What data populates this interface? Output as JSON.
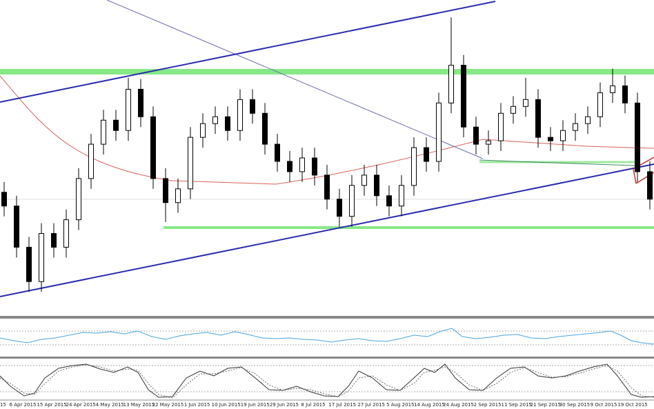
{
  "chart_data": {
    "type": "candlestick",
    "edge_label": "15",
    "x_labels": [
      "6 Apr 2015",
      "15 Apr 2015",
      "24 Apr 2015",
      "4 May 2015",
      "13 May 2015",
      "22 May 2015",
      "1 Jun 2015",
      "10 Jun 2015",
      "19 Jun 2015",
      "29 Jun 2015",
      "8 Jul 2015",
      "17 Jul 2015",
      "27 Jul 2015",
      "5 Aug 2015",
      "14 Aug 2015",
      "24 Aug 2015",
      "2 Sep 2015",
      "11 Sep 2015",
      "21 Sep 2015",
      "30 Sep 2015",
      "9 Oct 2015",
      "19 Oct 2015"
    ],
    "ohlc": [
      [
        1.095,
        1.0995,
        1.0845,
        1.089
      ],
      [
        1.089,
        1.0935,
        1.0665,
        1.071
      ],
      [
        1.071,
        1.0755,
        1.0515,
        1.056
      ],
      [
        1.056,
        1.0815,
        1.0515,
        1.077
      ],
      [
        1.077,
        1.0815,
        1.0665,
        1.071
      ],
      [
        1.071,
        1.0875,
        1.0665,
        1.083
      ],
      [
        1.083,
        1.1055,
        1.0785,
        1.101
      ],
      [
        1.101,
        1.1205,
        1.0965,
        1.116
      ],
      [
        1.116,
        1.131,
        1.1115,
        1.1265
      ],
      [
        1.1265,
        1.131,
        1.1175,
        1.122
      ],
      [
        1.122,
        1.145,
        1.1175,
        1.14
      ],
      [
        1.14,
        1.1445,
        1.1235,
        1.128
      ],
      [
        1.128,
        1.1325,
        1.0965,
        1.101
      ],
      [
        1.101,
        1.1055,
        1.082,
        1.0905
      ],
      [
        1.0905,
        1.101,
        1.086,
        1.0965
      ],
      [
        1.0965,
        1.1235,
        1.092,
        1.119
      ],
      [
        1.119,
        1.1295,
        1.1145,
        1.125
      ],
      [
        1.125,
        1.1325,
        1.1205,
        1.128
      ],
      [
        1.128,
        1.1325,
        1.1175,
        1.122
      ],
      [
        1.122,
        1.14,
        1.1175,
        1.1355
      ],
      [
        1.1355,
        1.14,
        1.125,
        1.1295
      ],
      [
        1.1295,
        1.134,
        1.1115,
        1.116
      ],
      [
        1.116,
        1.1205,
        1.104,
        1.1085
      ],
      [
        1.1085,
        1.113,
        1.0995,
        1.104
      ],
      [
        1.104,
        1.1145,
        1.0995,
        1.11
      ],
      [
        1.11,
        1.1145,
        1.098,
        1.1025
      ],
      [
        1.1025,
        1.107,
        1.0875,
        1.092
      ],
      [
        1.092,
        1.0965,
        1.08,
        1.0845
      ],
      [
        1.0845,
        1.1025,
        1.08,
        1.098
      ],
      [
        1.098,
        1.107,
        1.0935,
        1.1025
      ],
      [
        1.1025,
        1.107,
        1.089,
        1.0935
      ],
      [
        1.0935,
        1.098,
        1.0845,
        1.089
      ],
      [
        1.089,
        1.1025,
        1.0845,
        1.098
      ],
      [
        1.098,
        1.119,
        1.0935,
        1.1145
      ],
      [
        1.1145,
        1.119,
        1.104,
        1.1085
      ],
      [
        1.1085,
        1.1385,
        1.104,
        1.134
      ],
      [
        1.134,
        1.1714,
        1.1295,
        1.1505
      ],
      [
        1.1505,
        1.155,
        1.119,
        1.1235
      ],
      [
        1.1235,
        1.128,
        1.1115,
        1.116
      ],
      [
        1.116,
        1.122,
        1.1115,
        1.1175
      ],
      [
        1.1175,
        1.134,
        1.113,
        1.1295
      ],
      [
        1.1295,
        1.137,
        1.125,
        1.1325
      ],
      [
        1.1325,
        1.145,
        1.128,
        1.1355
      ],
      [
        1.1355,
        1.14,
        1.1145,
        1.119
      ],
      [
        1.119,
        1.1235,
        1.113,
        1.1175
      ],
      [
        1.1175,
        1.1265,
        1.113,
        1.122
      ],
      [
        1.122,
        1.1295,
        1.1175,
        1.125
      ],
      [
        1.125,
        1.1325,
        1.1205,
        1.128
      ],
      [
        1.128,
        1.143,
        1.1235,
        1.1385
      ],
      [
        1.1385,
        1.149,
        1.134,
        1.1415
      ],
      [
        1.1415,
        1.146,
        1.1295,
        1.134
      ],
      [
        1.134,
        1.1385,
        1.0995,
        1.104
      ],
      [
        1.104,
        1.1085,
        1.0875,
        1.092
      ]
    ],
    "ylim": [
      1.041,
      1.179
    ],
    "up_color": "#ffffff",
    "down_color": "#000000",
    "outline_color": "#000000",
    "grid": false
  }
}
